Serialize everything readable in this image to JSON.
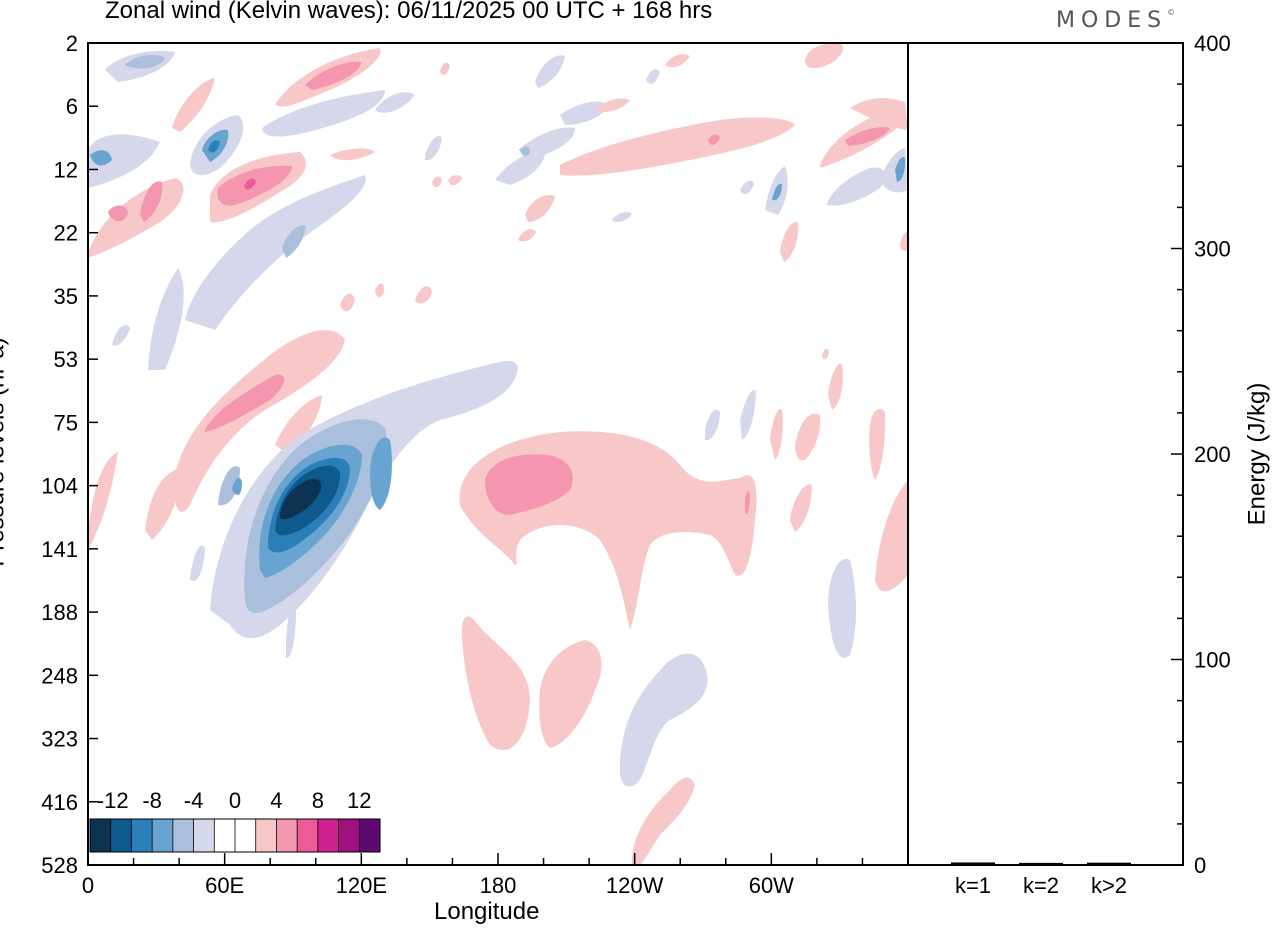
{
  "chart_data": [
    {
      "type": "heatmap",
      "title": "Zonal wind (Kelvin waves):  06/11/2025  00 UTC  + 168 hrs",
      "xlabel": "Longitude",
      "ylabel": "Pressure levels (hPa)",
      "x_ticks": [
        "0",
        "60E",
        "120E",
        "180",
        "120W",
        "60W"
      ],
      "x_tick_degrees": [
        0,
        60,
        120,
        180,
        240,
        300
      ],
      "xlim": [
        0,
        360
      ],
      "y_ticks": [
        "2",
        "6",
        "12",
        "22",
        "35",
        "53",
        "75",
        "104",
        "141",
        "188",
        "248",
        "323",
        "416",
        "528"
      ],
      "colorbar_labels": [
        "-12",
        "-8",
        "-4",
        "0",
        "4",
        "8",
        "12"
      ],
      "colorbar_levels": [
        -14,
        -12,
        -10,
        -8,
        -6,
        -4,
        -2,
        2,
        4,
        6,
        8,
        10,
        12,
        14
      ],
      "colorbar_colors": [
        "#0c3352",
        "#0f5a8c",
        "#2a7fb8",
        "#68a4cf",
        "#a9bfdc",
        "#d5d8ea",
        "#ffffff",
        "#ffffff",
        "#f8c8c8",
        "#f596b0",
        "#ee5a98",
        "#d02090",
        "#a0107e",
        "#5c0a6e"
      ]
    },
    {
      "type": "bar",
      "ylabel": "Energy (J/kg)",
      "categories": [
        "k=1",
        "k=2",
        "k>2"
      ],
      "values": [
        0.5,
        0.3,
        0.4
      ],
      "ylim": [
        0,
        400
      ],
      "y_ticks": [
        "0",
        "100",
        "200",
        "300",
        "400"
      ]
    }
  ],
  "brand": {
    "name": "MODES",
    "mark": "©"
  },
  "colors": {
    "neg1": "#d5d8ea",
    "neg2": "#a9bfdc",
    "neg3": "#68a4cf",
    "neg4": "#2a7fb8",
    "neg5": "#0f5a8c",
    "neg6": "#0c3352",
    "pos1": "#f8c8c8",
    "pos2": "#f596b0",
    "pos3": "#ee5a98",
    "pos4": "#d02090"
  }
}
